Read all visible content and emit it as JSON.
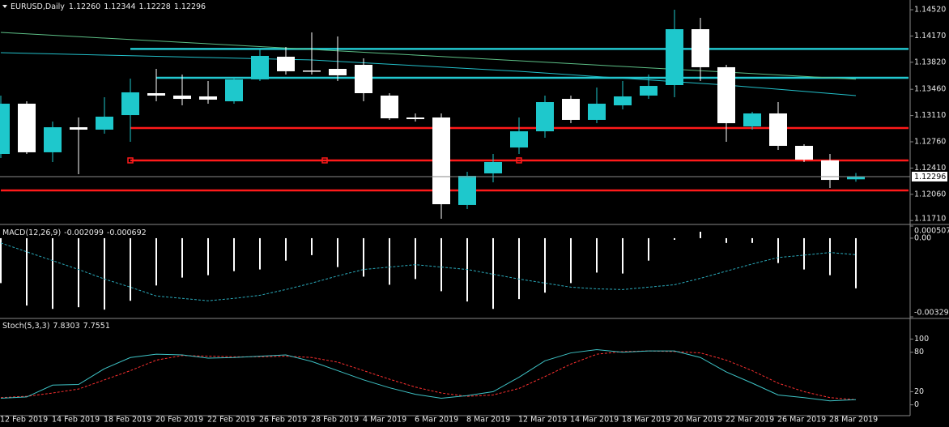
{
  "chart_data": [
    {
      "type": "candlestick",
      "title": "EURUSD,Daily",
      "header_labels": [
        "1.12260",
        "1.12344",
        "1.12228",
        "1.12296"
      ],
      "categories": [
        "12 Feb 2019",
        null,
        "14 Feb 2019",
        null,
        "18 Feb 2019",
        null,
        "20 Feb 2019",
        null,
        "22 Feb 2019",
        null,
        "26 Feb 2019",
        null,
        "28 Feb 2019",
        null,
        "4 Mar 2019",
        null,
        "6 Mar 2019",
        null,
        "8 Mar 2019",
        null,
        "12 Mar 2019",
        null,
        "14 Mar 2019",
        null,
        "18 Mar 2019",
        null,
        "20 Mar 2019",
        null,
        "22 Mar 2019",
        null,
        "26 Mar 2019",
        null,
        "28 Mar 2019",
        null
      ],
      "open": [
        1.12598,
        1.13268,
        1.1262,
        1.12954,
        1.12922,
        1.13116,
        1.13408,
        1.13376,
        1.13365,
        1.133,
        1.13592,
        1.13894,
        1.1371,
        1.13732,
        1.13786,
        1.13376,
        1.13084,
        1.13084,
        1.11918,
        1.12339,
        1.12684,
        1.129,
        1.13332,
        1.13052,
        1.13246,
        1.13376,
        1.13516,
        1.14261,
        1.13754,
        1.12965,
        1.13138,
        1.12706,
        1.12512,
        1.1226
      ],
      "high": [
        1.13376,
        1.133,
        1.1303,
        1.13084,
        1.13354,
        1.13602,
        1.13732,
        1.13656,
        1.1357,
        1.13624,
        1.14002,
        1.14024,
        1.14218,
        1.14164,
        1.13872,
        1.13408,
        1.13138,
        1.13138,
        1.1236,
        1.12598,
        1.13084,
        1.13376,
        1.13376,
        1.13484,
        1.1357,
        1.13656,
        1.1452,
        1.14412,
        1.13786,
        1.1316,
        1.13289,
        1.12728,
        1.12598,
        1.12344
      ],
      "low": [
        1.12544,
        1.12598,
        1.1249,
        1.12328,
        1.12868,
        1.1276,
        1.133,
        1.13246,
        1.13268,
        1.13268,
        1.1357,
        1.13656,
        1.13656,
        1.1357,
        1.133,
        1.13052,
        1.1303,
        1.11734,
        1.11864,
        1.1222,
        1.12598,
        1.12814,
        1.13008,
        1.13008,
        1.13192,
        1.13332,
        1.13354,
        1.1357,
        1.1276,
        1.12922,
        1.12652,
        1.1249,
        1.12144,
        1.12228
      ],
      "close": [
        1.13268,
        1.1262,
        1.12954,
        1.12922,
        1.13095,
        1.13419,
        1.13376,
        1.13332,
        1.13322,
        1.13592,
        1.13905,
        1.137,
        1.137,
        1.13646,
        1.13408,
        1.13073,
        1.13062,
        1.11928,
        1.12306,
        1.1249,
        1.129,
        1.13289,
        1.13052,
        1.13268,
        1.13365,
        1.13505,
        1.14261,
        1.13754,
        1.13008,
        1.13138,
        1.12706,
        1.12522,
        1.12252,
        1.12296
      ],
      "up_color": "#1ec8cc",
      "down_color": "#ffffff",
      "overlays": [
        {
          "color": "#5cbf86",
          "values": [
            1.14218,
            1.14199,
            1.1418,
            1.14161,
            1.14142,
            1.14124,
            1.14105,
            1.14086,
            1.14067,
            1.14048,
            1.14029,
            1.1401,
            1.13991,
            1.13972,
            1.13953,
            1.13935,
            1.13916,
            1.13897,
            1.13878,
            1.13859,
            1.1384,
            1.13821,
            1.13802,
            1.13783,
            1.13764,
            1.13746,
            1.13727,
            1.13708,
            1.13689,
            1.1367,
            1.13651,
            1.13632,
            1.13613,
            1.13594
          ]
        },
        {
          "color": "#22bfc9",
          "values": [
            1.13948,
            1.1394,
            1.13932,
            1.13924,
            1.13916,
            1.13908,
            1.13899,
            1.13891,
            1.13883,
            1.13875,
            1.13867,
            1.13859,
            1.13851,
            1.13832,
            1.13813,
            1.13794,
            1.13775,
            1.13756,
            1.13737,
            1.13718,
            1.137,
            1.13677,
            1.13654,
            1.1363,
            1.13608,
            1.13585,
            1.13562,
            1.13539,
            1.13516,
            1.13488,
            1.1346,
            1.13432,
            1.13404,
            1.13376
          ]
        }
      ],
      "levels": [
        {
          "value": 1.13998,
          "color": "#22c8d0",
          "from": 5
        },
        {
          "value": 1.13613,
          "color": "#22c8d0",
          "from": 6
        },
        {
          "value": 1.12944,
          "color": "#ff1a1a",
          "from": 5
        },
        {
          "value": 1.12512,
          "color": "#ff1a1a",
          "from": 5,
          "anchors": [
            5,
            12.5,
            20
          ]
        },
        {
          "value": 1.12112,
          "color": "#ff1a1a",
          "from": 0
        }
      ],
      "ylim": [
        1.1168,
        1.1465
      ],
      "yticks": [
        {
          "value": 1.1452,
          "label": "1.14520"
        },
        {
          "value": 1.1417,
          "label": "1.14170"
        },
        {
          "value": 1.1382,
          "label": "1.13820"
        },
        {
          "value": 1.1346,
          "label": "1.13460"
        },
        {
          "value": 1.1311,
          "label": "1.13110"
        },
        {
          "value": 1.1276,
          "label": "1.12760"
        },
        {
          "value": 1.1241,
          "label": "1.12410"
        },
        {
          "value": 1.1206,
          "label": "1.12060"
        },
        {
          "value": 1.1171,
          "label": "1.11710"
        }
      ]
    },
    {
      "type": "macd",
      "title": "MACD(12,26,9)",
      "histogram": [
        -0.00188,
        -0.00282,
        -0.00296,
        -0.00289,
        -0.00299,
        -0.00262,
        -0.00198,
        -0.00165,
        -0.00155,
        -0.00138,
        -0.00131,
        -0.00094,
        -0.00071,
        -0.00121,
        -0.00161,
        -0.00195,
        -0.00171,
        -0.00222,
        -0.00265,
        -0.00296,
        -0.00255,
        -0.00228,
        -0.00188,
        -0.00144,
        -0.00148,
        -0.00094,
        -7e-05,
        0.00027,
        -0.0002,
        -0.0002,
        -0.00104,
        -0.00131,
        -0.00155,
        -0.002099
      ],
      "signal": [
        -0.0002,
        -0.00057,
        -0.00094,
        -0.00131,
        -0.00171,
        -0.00205,
        -0.00242,
        -0.00252,
        -0.00262,
        -0.00252,
        -0.00239,
        -0.00215,
        -0.00188,
        -0.00158,
        -0.00131,
        -0.00121,
        -0.00111,
        -0.00121,
        -0.00131,
        -0.00151,
        -0.00171,
        -0.00188,
        -0.00205,
        -0.00212,
        -0.00215,
        -0.00205,
        -0.00195,
        -0.00168,
        -0.00138,
        -0.00108,
        -0.00081,
        -0.00071,
        -0.0006,
        -0.000692
      ],
      "histogram_color": "#ffffff",
      "signal_color": "#2aa9ba",
      "ylim": [
        -0.003291,
        0.000507
      ],
      "yticks": [
        0.000507,
        {
          "value": 0,
          "label": "0.00"
        },
        -0.003291
      ]
    },
    {
      "type": "stochastic",
      "title": "Stoch(5,3,3)",
      "main": [
        10,
        12,
        30,
        31,
        55,
        72,
        77,
        76,
        71,
        72,
        74,
        76,
        66,
        52,
        38,
        26,
        16,
        10,
        14,
        20,
        42,
        67,
        79,
        84,
        80,
        82,
        82,
        72,
        50,
        33,
        15,
        11,
        6,
        7.8303
      ],
      "signal": [
        11,
        13,
        18,
        24,
        38,
        52,
        68,
        75,
        74,
        73,
        73,
        74,
        72,
        65,
        52,
        39,
        27,
        18,
        13,
        15,
        25,
        43,
        62,
        77,
        81,
        82,
        81,
        79,
        68,
        52,
        33,
        20,
        11,
        7.7551
      ],
      "main_color": "#3ec3c6",
      "signal_color": "#ff3030",
      "ylim": [
        -14,
        129
      ],
      "yticks": [
        100,
        80,
        20,
        0
      ]
    }
  ]
}
